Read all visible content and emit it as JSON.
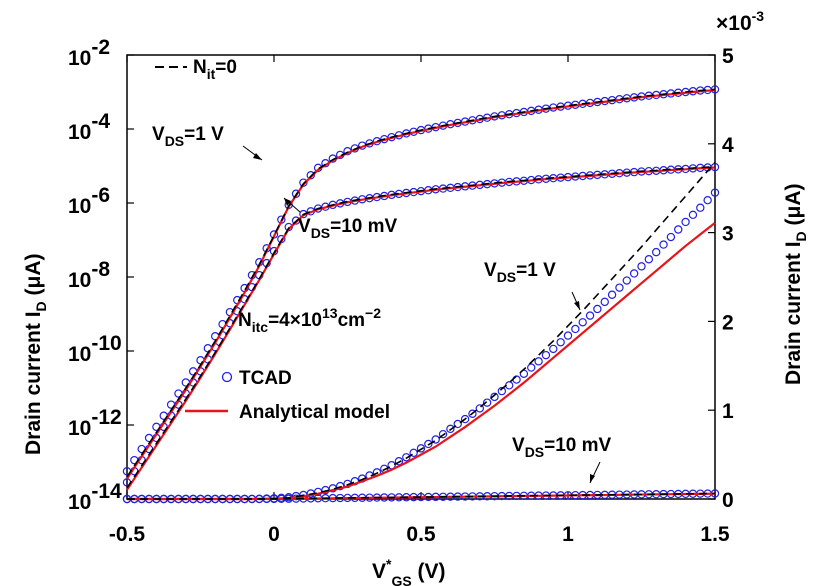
{
  "chart_data": {
    "type": "line",
    "x": [
      -0.5,
      -0.45,
      -0.4,
      -0.35,
      -0.3,
      -0.25,
      -0.2,
      -0.15,
      -0.1,
      -0.05,
      0,
      0.05,
      0.1,
      0.15,
      0.2,
      0.25,
      0.3,
      0.35,
      0.4,
      0.45,
      0.5,
      0.55,
      0.6,
      0.65,
      0.7,
      0.75,
      0.8,
      0.85,
      0.9,
      0.95,
      1.0,
      1.05,
      1.1,
      1.15,
      1.2,
      1.25,
      1.3,
      1.35,
      1.4,
      1.45,
      1.5
    ],
    "xlabel": "V",
    "xlabel_sup": "*",
    "xlabel_sub": "GS",
    "xlabel_unit": " (V)",
    "xlim": [
      -0.5,
      1.5
    ],
    "xticks": [
      "-0.5",
      "0",
      "0.5",
      "1",
      "1.5"
    ],
    "left_axis": {
      "label": "Drain current I",
      "label_sub": "D",
      "label_unit": " (μA)",
      "scale": "log",
      "ylim_exp": [
        -14,
        -2
      ],
      "tick_base": "10",
      "tick_exponents": [
        "-14",
        "-12",
        "-10",
        "-8",
        "-6",
        "-4",
        "-2"
      ]
    },
    "right_axis": {
      "label": "Drain current I",
      "label_sub": "D",
      "label_unit": " (μA)",
      "scale": "linear",
      "ylim": [
        0,
        0.005
      ],
      "multiplier_prefix": "×10",
      "multiplier_exp": "-3",
      "tick_labels": [
        "0",
        "1",
        "2",
        "3",
        "4",
        "5"
      ]
    },
    "series": [
      {
        "name": "TCAD V_DS=1 V (log)",
        "axis": "left",
        "style": "markers",
        "values_log10": [
          -13.25,
          -12.65,
          -12.05,
          -11.45,
          -10.85,
          -10.25,
          -9.6,
          -8.95,
          -8.3,
          -7.6,
          -6.85,
          -6.05,
          -5.45,
          -5.05,
          -4.8,
          -4.6,
          -4.45,
          -4.33,
          -4.22,
          -4.12,
          -4.03,
          -3.95,
          -3.87,
          -3.8,
          -3.73,
          -3.66,
          -3.6,
          -3.54,
          -3.48,
          -3.42,
          -3.37,
          -3.32,
          -3.27,
          -3.22,
          -3.17,
          -3.12,
          -3.08,
          -3.04,
          -3.0,
          -2.96,
          -2.93
        ]
      },
      {
        "name": "TCAD V_DS=10 mV (log)",
        "axis": "left",
        "style": "markers",
        "values_log10": [
          -13.55,
          -12.95,
          -12.35,
          -11.75,
          -11.15,
          -10.55,
          -9.9,
          -9.25,
          -8.6,
          -7.95,
          -7.3,
          -6.65,
          -6.3,
          -6.15,
          -6.05,
          -5.97,
          -5.9,
          -5.84,
          -5.78,
          -5.73,
          -5.68,
          -5.63,
          -5.59,
          -5.55,
          -5.51,
          -5.47,
          -5.43,
          -5.4,
          -5.36,
          -5.33,
          -5.3,
          -5.27,
          -5.24,
          -5.21,
          -5.18,
          -5.15,
          -5.13,
          -5.1,
          -5.08,
          -5.05,
          -5.03
        ]
      },
      {
        "name": "TCAD V_DS=1 V (linear)",
        "axis": "right",
        "style": "markers",
        "values": [
          0,
          0,
          0,
          0,
          0,
          0,
          0,
          0,
          0,
          2e-06,
          7e-06,
          2e-05,
          4.5e-05,
          8e-05,
          0.00012,
          0.00017,
          0.00023,
          0.0003,
          0.00038,
          0.00047,
          0.00057,
          0.00067,
          0.00079,
          0.0009,
          0.00102,
          0.00115,
          0.00128,
          0.00141,
          0.00155,
          0.00169,
          0.00184,
          0.00199,
          0.00214,
          0.0023,
          0.00246,
          0.00262,
          0.00278,
          0.00295,
          0.00312,
          0.00328,
          0.00345
        ]
      },
      {
        "name": "TCAD V_DS=10 mV (linear)",
        "axis": "right",
        "style": "markers",
        "values": [
          0,
          0,
          0,
          0,
          0,
          0,
          0,
          0,
          0,
          0,
          1e-06,
          3e-06,
          5e-06,
          8e-06,
          1e-05,
          1.2e-05,
          1.4e-05,
          1.6e-05,
          1.8e-05,
          2e-05,
          2.2e-05,
          2.4e-05,
          2.6e-05,
          2.8e-05,
          3e-05,
          3.2e-05,
          3.4e-05,
          3.6e-05,
          3.8e-05,
          4e-05,
          4.2e-05,
          4.4e-05,
          4.6e-05,
          4.8e-05,
          5e-05,
          5.2e-05,
          5.4e-05,
          5.6e-05,
          5.8e-05,
          6e-05,
          6.2e-05
        ]
      },
      {
        "name": "Analytical V_DS=1 V (log)",
        "axis": "left",
        "style": "line",
        "color": "#e8141b",
        "values_log10": [
          -13.45,
          -12.85,
          -12.25,
          -11.65,
          -11.05,
          -10.42,
          -9.78,
          -9.1,
          -8.42,
          -7.7,
          -6.9,
          -6.1,
          -5.5,
          -5.1,
          -4.85,
          -4.65,
          -4.48,
          -4.35,
          -4.24,
          -4.14,
          -4.05,
          -3.97,
          -3.89,
          -3.82,
          -3.75,
          -3.68,
          -3.62,
          -3.56,
          -3.5,
          -3.44,
          -3.39,
          -3.34,
          -3.29,
          -3.24,
          -3.19,
          -3.14,
          -3.1,
          -3.06,
          -3.02,
          -2.98,
          -2.95
        ]
      },
      {
        "name": "Analytical V_DS=10 mV (log)",
        "axis": "left",
        "style": "line",
        "color": "#e8141b",
        "values_log10": [
          -13.75,
          -13.15,
          -12.55,
          -11.95,
          -11.35,
          -10.72,
          -10.08,
          -9.42,
          -8.75,
          -8.08,
          -7.38,
          -6.7,
          -6.33,
          -6.17,
          -6.07,
          -5.98,
          -5.91,
          -5.85,
          -5.79,
          -5.74,
          -5.69,
          -5.64,
          -5.6,
          -5.56,
          -5.52,
          -5.48,
          -5.44,
          -5.41,
          -5.37,
          -5.34,
          -5.31,
          -5.28,
          -5.25,
          -5.22,
          -5.19,
          -5.16,
          -5.14,
          -5.11,
          -5.09,
          -5.06,
          -5.04
        ]
      },
      {
        "name": "Analytical V_DS=1 V (linear)",
        "axis": "right",
        "style": "line",
        "color": "#e8141b",
        "values": [
          0,
          0,
          0,
          0,
          0,
          0,
          0,
          0,
          0,
          1e-06,
          4e-06,
          1e-05,
          3e-05,
          6e-05,
          0.0001,
          0.00014,
          0.0002,
          0.00026,
          0.00033,
          0.00041,
          0.0005,
          0.00059,
          0.0007,
          0.00081,
          0.00093,
          0.00105,
          0.00118,
          0.00131,
          0.00145,
          0.00159,
          0.00173,
          0.00187,
          0.00201,
          0.00215,
          0.00229,
          0.00243,
          0.00257,
          0.00271,
          0.00285,
          0.00298,
          0.00311
        ]
      },
      {
        "name": "Analytical V_DS=10 mV (linear)",
        "axis": "right",
        "style": "line",
        "color": "#e8141b",
        "values": [
          0,
          0,
          0,
          0,
          0,
          0,
          0,
          0,
          0,
          0,
          1e-06,
          2e-06,
          4e-06,
          6e-06,
          8e-06,
          1e-05,
          1.2e-05,
          1.4e-05,
          1.6e-05,
          1.8e-05,
          2e-05,
          2.2e-05,
          2.4e-05,
          2.6e-05,
          2.8e-05,
          3e-05,
          3.2e-05,
          3.4e-05,
          3.6e-05,
          3.8e-05,
          4e-05,
          4.2e-05,
          4.4e-05,
          4.6e-05,
          4.8e-05,
          5e-05,
          5.2e-05,
          5.4e-05,
          5.6e-05,
          5.8e-05,
          6e-05
        ]
      },
      {
        "name": "N_it=0 V_DS=1 V (log)",
        "axis": "left",
        "style": "dashed",
        "color": "#000000",
        "values_log10": [
          -13.4,
          -12.8,
          -12.2,
          -11.6,
          -11.0,
          -10.38,
          -9.73,
          -9.05,
          -8.37,
          -7.66,
          -6.88,
          -6.08,
          -5.48,
          -5.08,
          -4.83,
          -4.63,
          -4.46,
          -4.33,
          -4.22,
          -4.12,
          -4.03,
          -3.95,
          -3.87,
          -3.8,
          -3.73,
          -3.66,
          -3.6,
          -3.54,
          -3.48,
          -3.42,
          -3.37,
          -3.32,
          -3.27,
          -3.22,
          -3.17,
          -3.12,
          -3.08,
          -3.04,
          -3.0,
          -2.96,
          -2.93
        ]
      },
      {
        "name": "N_it=0 V_DS=10 mV (log)",
        "axis": "left",
        "style": "dashed",
        "color": "#000000",
        "values_log10": [
          -13.7,
          -13.1,
          -12.5,
          -11.9,
          -11.3,
          -10.68,
          -10.04,
          -9.38,
          -8.72,
          -8.05,
          -7.35,
          -6.68,
          -6.31,
          -6.15,
          -6.05,
          -5.96,
          -5.89,
          -5.83,
          -5.77,
          -5.72,
          -5.67,
          -5.62,
          -5.58,
          -5.54,
          -5.5,
          -5.46,
          -5.42,
          -5.39,
          -5.35,
          -5.32,
          -5.29,
          -5.26,
          -5.23,
          -5.2,
          -5.17,
          -5.14,
          -5.12,
          -5.09,
          -5.07,
          -5.04,
          -5.02
        ]
      },
      {
        "name": "N_it=0 V_DS=1 V (linear)",
        "axis": "right",
        "style": "dashed",
        "color": "#000000",
        "values": [
          0,
          0,
          0,
          0,
          0,
          0,
          0,
          0,
          0,
          1e-06,
          5e-06,
          1.4e-05,
          4e-05,
          7e-05,
          0.00011,
          0.00016,
          0.00022,
          0.00029,
          0.00037,
          0.00046,
          0.00056,
          0.00066,
          0.00078,
          0.0009,
          0.00103,
          0.00117,
          0.00131,
          0.00146,
          0.00162,
          0.00178,
          0.00195,
          0.00212,
          0.0023,
          0.00248,
          0.00266,
          0.00284,
          0.00303,
          0.00322,
          0.00341,
          0.0036,
          0.00379
        ]
      },
      {
        "name": "N_it=0 V_DS=10 mV (linear)",
        "axis": "right",
        "style": "dashed",
        "color": "#000000",
        "values": [
          0,
          0,
          0,
          0,
          0,
          0,
          0,
          0,
          0,
          0,
          1e-06,
          3e-06,
          5e-06,
          8e-06,
          1e-05,
          1.2e-05,
          1.4e-05,
          1.6e-05,
          1.8e-05,
          2e-05,
          2.2e-05,
          2.4e-05,
          2.6e-05,
          2.8e-05,
          3e-05,
          3.2e-05,
          3.4e-05,
          3.6e-05,
          3.8e-05,
          4e-05,
          4.2e-05,
          4.4e-05,
          4.6e-05,
          4.8e-05,
          5e-05,
          5.2e-05,
          5.4e-05,
          5.6e-05,
          5.8e-05,
          6e-05,
          6.2e-05
        ]
      }
    ],
    "legend": {
      "position": "left",
      "entries": [
        {
          "label": "N",
          "label_sub": "it",
          "label_rest": "=0",
          "style": "dashed",
          "color": "#000000"
        },
        {
          "label": "TCAD",
          "style": "marker",
          "color": "#2020e0"
        },
        {
          "label": "Analytical model",
          "style": "line",
          "color": "#e8141b"
        }
      ]
    },
    "annotations": {
      "vds1_log": {
        "pre": "V",
        "sub": "DS",
        "post": "=1 V"
      },
      "vds10_log": {
        "pre": "V",
        "sub": "DS",
        "post": "=10 mV"
      },
      "vds1_lin": {
        "pre": "V",
        "sub": "DS",
        "post": "=1 V"
      },
      "vds10_lin": {
        "pre": "V",
        "sub": "DS",
        "post": "=10 mV"
      },
      "nitc": {
        "pre": "N",
        "sub": "itc",
        "mid": "=4×10",
        "sup": "13",
        "post": "cm",
        "sup2": "−2"
      }
    },
    "colors": {
      "marker": "#2020e0",
      "analytical": "#e8141b",
      "dashed": "#000000"
    }
  }
}
